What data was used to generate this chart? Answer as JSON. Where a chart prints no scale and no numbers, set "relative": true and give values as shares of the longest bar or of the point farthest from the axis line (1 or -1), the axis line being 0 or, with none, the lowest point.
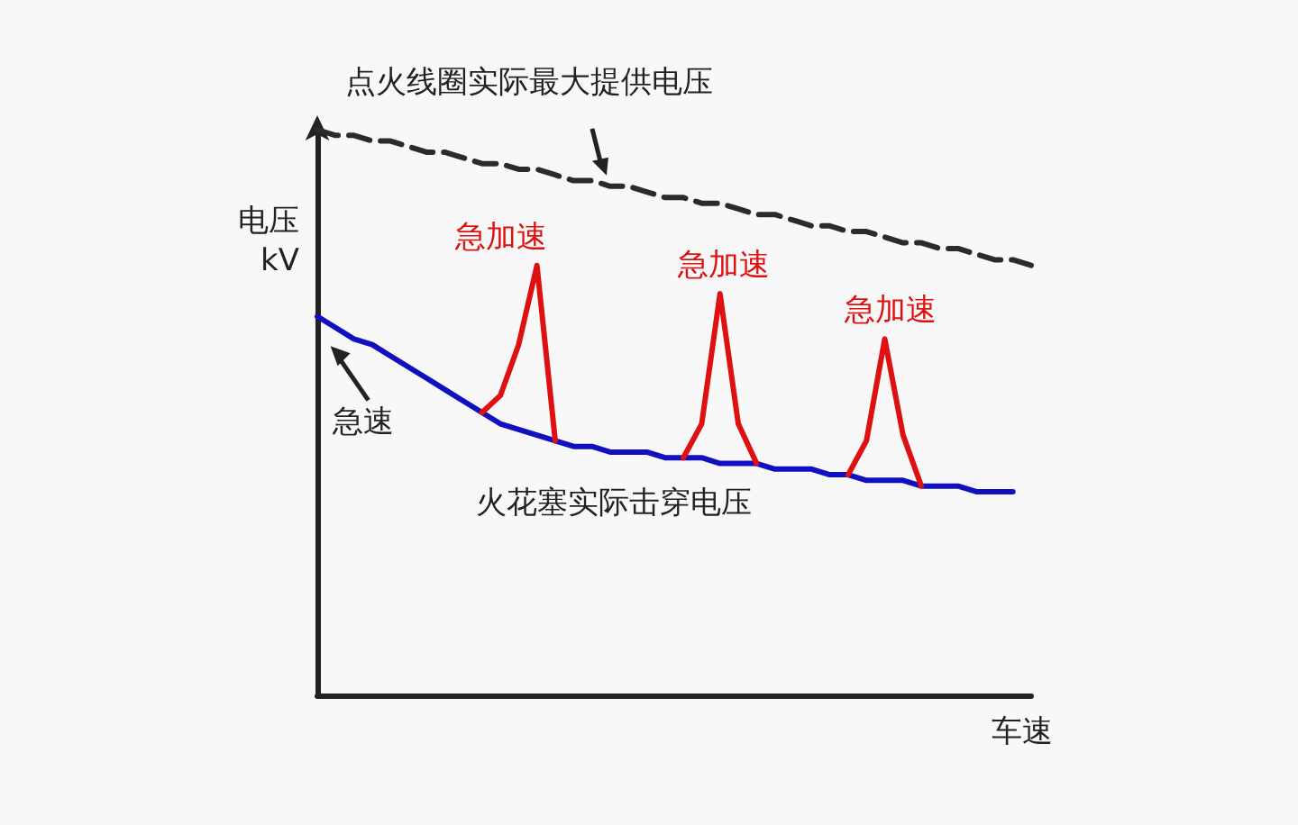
{
  "chart_data": {
    "type": "line",
    "relative": true,
    "xlabel": "车速",
    "ylabel": "电压\nkV",
    "categories": [
      null,
      null,
      null,
      null,
      null,
      null,
      null,
      null,
      null,
      null,
      null,
      null,
      null,
      null,
      null,
      null,
      null,
      null,
      null,
      null,
      null,
      null,
      null,
      null,
      null,
      null,
      null,
      null,
      null,
      null,
      null,
      null,
      null,
      null,
      null,
      null,
      null,
      null,
      null,
      null
    ],
    "series": [
      {
        "name": "点火线圈实际最大提供电压",
        "color": "#2b2b2b",
        "line_style": "dashed",
        "values": [
          1.0,
          0.99,
          0.99,
          0.98,
          0.98,
          0.97,
          0.96,
          0.96,
          0.95,
          0.94,
          0.94,
          0.93,
          0.93,
          0.92,
          0.91,
          0.91,
          0.9,
          0.9,
          0.89,
          0.88,
          0.88,
          0.87,
          0.87,
          0.86,
          0.85,
          0.85,
          0.84,
          0.83,
          0.83,
          0.82,
          0.82,
          0.81,
          0.8,
          0.8,
          0.79,
          0.79,
          0.78,
          0.77,
          0.77,
          0.76
        ]
      },
      {
        "color": "#1010c0",
        "line_style": "solid",
        "values": [
          0.67,
          0.65,
          0.63,
          0.62,
          0.6,
          0.58,
          0.56,
          0.54,
          0.52,
          0.5,
          0.48,
          0.47,
          0.46,
          0.45,
          0.44,
          0.44,
          0.43,
          0.43,
          0.43,
          0.42,
          0.42,
          0.42,
          0.41,
          0.41,
          0.41,
          0.4,
          0.4,
          0.4,
          0.39,
          0.39,
          0.38,
          0.38,
          0.38,
          0.37,
          0.37,
          0.37,
          0.36,
          0.36,
          0.36,
          null
        ]
      },
      {
        "name": "急加速",
        "color": "#dd1111",
        "line_style": "solid",
        "values": [
          null,
          null,
          null,
          null,
          null,
          null,
          null,
          null,
          null,
          0.5,
          0.53,
          0.62,
          0.76,
          0.45,
          null,
          null,
          null,
          null,
          null,
          null,
          null,
          null,
          null,
          null,
          null,
          null,
          null,
          null,
          null,
          null,
          null,
          null,
          null,
          null,
          null,
          null,
          null,
          null,
          null,
          null
        ]
      },
      {
        "name": "急加速",
        "color": "#dd1111",
        "line_style": "solid",
        "values": [
          null,
          null,
          null,
          null,
          null,
          null,
          null,
          null,
          null,
          null,
          null,
          null,
          null,
          null,
          null,
          null,
          null,
          null,
          null,
          null,
          0.42,
          0.48,
          0.71,
          0.48,
          0.41,
          null,
          null,
          null,
          null,
          null,
          null,
          null,
          null,
          null,
          null,
          null,
          null,
          null,
          null,
          null
        ]
      },
      {
        "name": "急加速",
        "color": "#dd1111",
        "line_style": "solid",
        "values": [
          null,
          null,
          null,
          null,
          null,
          null,
          null,
          null,
          null,
          null,
          null,
          null,
          null,
          null,
          null,
          null,
          null,
          null,
          null,
          null,
          null,
          null,
          null,
          null,
          null,
          null,
          null,
          null,
          null,
          0.39,
          0.45,
          0.63,
          0.46,
          0.37,
          null,
          null,
          null,
          null,
          null,
          null
        ]
      }
    ],
    "annotations": [
      "急速",
      "火花塞实际击穿电压"
    ],
    "marker": "none",
    "grid": false,
    "legend": false
  }
}
